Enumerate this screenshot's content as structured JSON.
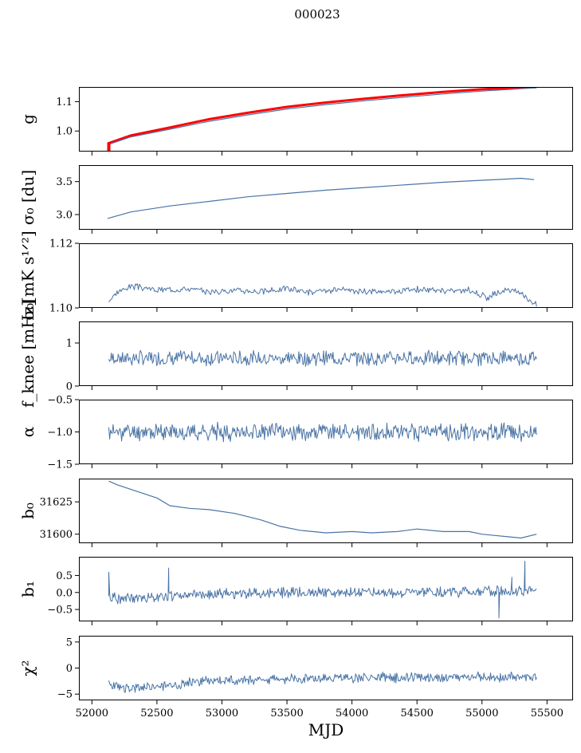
{
  "figure": {
    "title": "000023"
  },
  "colors": {
    "series": "#4a74a6",
    "highlight": "#ff0000",
    "axes": "#000000"
  },
  "chart_data": [
    {
      "type": "line",
      "ylabel": "g",
      "xlim": [
        51900,
        55700
      ],
      "ylim": [
        0.93,
        1.15
      ],
      "yticks": [
        {
          "v": 1.0,
          "label": "1.0"
        },
        {
          "v": 1.1,
          "label": "1.1"
        }
      ],
      "series": [
        {
          "color": "#ff0000",
          "width": 3.0,
          "x": [
            52120,
            52300,
            52600,
            52900,
            53200,
            53500,
            53800,
            54100,
            54400,
            54700,
            55000,
            55300,
            55420
          ],
          "y": [
            0.957,
            0.985,
            1.012,
            1.04,
            1.062,
            1.082,
            1.097,
            1.11,
            1.122,
            1.133,
            1.142,
            1.148,
            1.15
          ]
        },
        {
          "color": "#4a74a6",
          "width": 1.2,
          "x": [
            52120,
            52300,
            52600,
            52900,
            53200,
            53500,
            53800,
            54100,
            54400,
            54700,
            55000,
            55300,
            55420
          ],
          "y": [
            0.953,
            0.98,
            1.006,
            1.033,
            1.055,
            1.075,
            1.09,
            1.103,
            1.115,
            1.126,
            1.136,
            1.144,
            1.147
          ]
        }
      ],
      "vmarks": [
        {
          "x": 52130,
          "y0": 0.93,
          "y1": 0.96
        }
      ]
    },
    {
      "type": "line",
      "ylabel": "σ₀ [du]",
      "xlim": [
        51900,
        55700
      ],
      "ylim": [
        2.77,
        3.75
      ],
      "yticks": [
        {
          "v": 3.0,
          "label": "3.0"
        },
        {
          "v": 3.5,
          "label": "3.5"
        }
      ],
      "series": [
        {
          "color": "#4a74a6",
          "width": 1.2,
          "x": [
            52120,
            52300,
            52600,
            52900,
            53200,
            53500,
            53800,
            54100,
            54400,
            54700,
            55000,
            55200,
            55300,
            55400
          ],
          "y": [
            2.94,
            3.04,
            3.13,
            3.2,
            3.27,
            3.32,
            3.37,
            3.41,
            3.45,
            3.49,
            3.52,
            3.54,
            3.55,
            3.53
          ]
        }
      ]
    },
    {
      "type": "line",
      "ylabel": "σ₀[mK s¹ᐟ²]",
      "xlim": [
        51900,
        55700
      ],
      "ylim": [
        1.1,
        1.12
      ],
      "yticks": [
        {
          "v": 1.1,
          "label": "1.10"
        },
        {
          "v": 1.12,
          "label": "1.12"
        }
      ],
      "noise": {
        "start": 52130,
        "end": 55420,
        "n": 420,
        "base": 1.106,
        "amp": 0.0008,
        "seed": 3
      },
      "series": [
        {
          "color": "#4a74a6",
          "width": 1.0,
          "x": [
            52130,
            52200,
            52300,
            52500,
            52700,
            52900,
            53100,
            53300,
            53500,
            53700,
            53900,
            54100,
            54300,
            54500,
            54700,
            54900,
            55000,
            55050,
            55100,
            55200,
            55300,
            55420
          ],
          "y": [
            1.102,
            1.105,
            1.1068,
            1.1055,
            1.106,
            1.105,
            1.1055,
            1.105,
            1.106,
            1.1048,
            1.1055,
            1.105,
            1.1052,
            1.1058,
            1.1052,
            1.1055,
            1.104,
            1.1028,
            1.1045,
            1.1055,
            1.1045,
            1.101
          ]
        }
      ]
    },
    {
      "type": "line",
      "ylabel": "f_knee [mHz]",
      "xlim": [
        51900,
        55700
      ],
      "ylim": [
        0,
        1.5
      ],
      "yticks": [
        {
          "v": 0,
          "label": "0"
        },
        {
          "v": 1,
          "label": "1"
        }
      ],
      "noise": {
        "start": 52130,
        "end": 55420,
        "n": 500,
        "base": 0.65,
        "amp": 0.14,
        "seed": 7
      },
      "series": [
        {
          "color": "#4a74a6",
          "width": 1.0,
          "x": [
            52130,
            55420
          ],
          "y": [
            0.65,
            0.65
          ]
        }
      ]
    },
    {
      "type": "line",
      "ylabel": "α",
      "xlim": [
        51900,
        55700
      ],
      "ylim": [
        -1.5,
        -0.5
      ],
      "yticks": [
        {
          "v": -1.5,
          "label": "−1.5"
        },
        {
          "v": -1.0,
          "label": "−1.0"
        },
        {
          "v": -0.5,
          "label": "−0.5"
        }
      ],
      "noise": {
        "start": 52130,
        "end": 55420,
        "n": 500,
        "base": -1.0,
        "amp": 0.11,
        "seed": 11
      },
      "series": [
        {
          "color": "#4a74a6",
          "width": 1.0,
          "x": [
            52130,
            55420
          ],
          "y": [
            -1.0,
            -1.0
          ]
        }
      ]
    },
    {
      "type": "line",
      "ylabel": "b₀",
      "xlim": [
        51900,
        55700
      ],
      "ylim": [
        31593,
        31643
      ],
      "yticks": [
        {
          "v": 31600,
          "label": "31600"
        },
        {
          "v": 31625,
          "label": "31625"
        }
      ],
      "series": [
        {
          "color": "#4a74a6",
          "width": 1.2,
          "x": [
            52130,
            52200,
            52350,
            52500,
            52600,
            52750,
            52900,
            53100,
            53300,
            53450,
            53600,
            53800,
            54000,
            54150,
            54350,
            54500,
            54700,
            54900,
            55000,
            55100,
            55200,
            55300,
            55420
          ],
          "y": [
            31641,
            31638,
            31633,
            31628,
            31622,
            31620,
            31619,
            31616,
            31611,
            31606,
            31603,
            31601,
            31602,
            31601,
            31602,
            31604,
            31602,
            31602,
            31600,
            31599,
            31598,
            31597,
            31600
          ]
        }
      ]
    },
    {
      "type": "line",
      "ylabel": "b₁",
      "xlim": [
        51900,
        55700
      ],
      "ylim": [
        -0.85,
        1.05
      ],
      "yticks": [
        {
          "v": -0.5,
          "label": "−0.5"
        },
        {
          "v": 0.0,
          "label": "0.0"
        },
        {
          "v": 0.5,
          "label": "0.5"
        }
      ],
      "noise": {
        "start": 52130,
        "end": 55420,
        "n": 520,
        "base": -0.05,
        "amp": 0.13,
        "seed": 19
      },
      "series": [
        {
          "color": "#4a74a6",
          "width": 1.0,
          "x": [
            52130,
            52300,
            52600,
            52900,
            53200,
            53500,
            53800,
            54100,
            54400,
            54700,
            55000,
            55200,
            55420
          ],
          "y": [
            -0.15,
            -0.18,
            -0.1,
            -0.05,
            -0.02,
            0.0,
            0.0,
            0.02,
            0.0,
            0.02,
            0.03,
            0.05,
            0.05
          ]
        }
      ],
      "spikes": [
        {
          "x": 52130,
          "y": 0.6
        },
        {
          "x": 52590,
          "y": 0.72
        },
        {
          "x": 55130,
          "y": -0.75
        },
        {
          "x": 55330,
          "y": 0.92
        },
        {
          "x": 55230,
          "y": 0.45
        }
      ]
    },
    {
      "type": "line",
      "ylabel": "χ²",
      "xlabel": "MJD",
      "xlim": [
        51900,
        55700
      ],
      "ylim": [
        -6.2,
        6.2
      ],
      "yticks": [
        {
          "v": -5,
          "label": "−5"
        },
        {
          "v": 0,
          "label": "0"
        },
        {
          "v": 5,
          "label": "5"
        }
      ],
      "xticks": [
        {
          "v": 52000,
          "label": "52000"
        },
        {
          "v": 52500,
          "label": "52500"
        },
        {
          "v": 53000,
          "label": "53000"
        },
        {
          "v": 53500,
          "label": "53500"
        },
        {
          "v": 54000,
          "label": "54000"
        },
        {
          "v": 54500,
          "label": "54500"
        },
        {
          "v": 55000,
          "label": "55000"
        },
        {
          "v": 55500,
          "label": "55500"
        }
      ],
      "noise": {
        "start": 52130,
        "end": 55420,
        "n": 520,
        "base": 0,
        "amp": 0.8,
        "seed": 23
      },
      "series": [
        {
          "color": "#4a74a6",
          "width": 1.0,
          "x": [
            52130,
            52300,
            52500,
            52800,
            53100,
            53400,
            53700,
            54000,
            54300,
            54600,
            54900,
            55200,
            55420
          ],
          "y": [
            -3.3,
            -4.0,
            -3.5,
            -2.6,
            -2.3,
            -2.1,
            -1.9,
            -1.9,
            -1.8,
            -1.8,
            -1.8,
            -1.8,
            -1.6
          ]
        }
      ]
    }
  ]
}
